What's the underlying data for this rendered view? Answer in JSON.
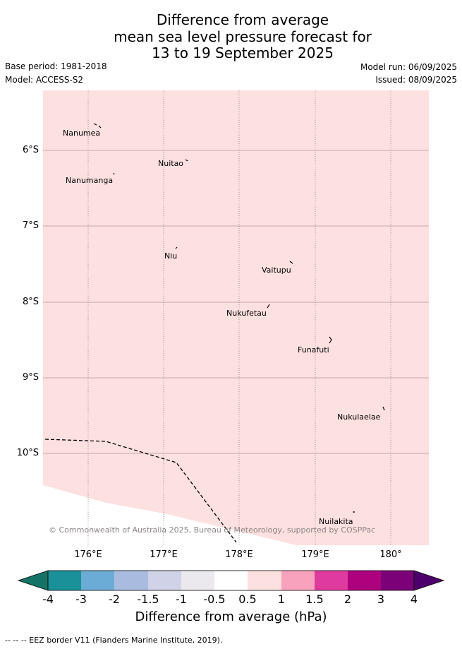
{
  "title": {
    "line1": "Difference from average",
    "line2": "mean sea level pressure forecast for",
    "line3": "13 to 19 September 2025"
  },
  "base_period": "Base period: 1981-2018",
  "model": "Model: ACCESS-S2",
  "model_run": "Model run: 06/09/2025",
  "issued": "Issued: 08/09/2025",
  "latitude_labels": [
    "6°S",
    "7°S",
    "8°S",
    "9°S",
    "10°S"
  ],
  "longitude_labels": [
    "176°E",
    "177°E",
    "178°E",
    "179°E",
    "180°"
  ],
  "places": [
    "Nanumea",
    "Nuitao",
    "Nanumanga",
    "Niu",
    "Vaitupu",
    "Nukufetau",
    "Funafuti",
    "Nukulaelae",
    "Nuilakita"
  ],
  "copyright": "© Commonwealth of Australia 2025, Bureau of Meteorology, supported by COSPPac",
  "colorbar": {
    "tick_labels": [
      "-4",
      "-3",
      "-2",
      "-1.5",
      "-1",
      "-0.5",
      "0.5",
      "1",
      "1.5",
      "2",
      "3",
      "4"
    ],
    "colors": [
      "#1a9098",
      "#6aacd5",
      "#a9bcdf",
      "#d0d2e8",
      "#ebe9ee",
      "#ffffff",
      "#fde0e0",
      "#f9a2bd",
      "#df3a9e",
      "#ad017e",
      "#7b0179",
      "#4d006c",
      "#127366"
    ],
    "label": "Difference from average (hPa)"
  },
  "map_fill_color": "#fde0e0",
  "footnote": "-- -- -- EEZ border V11 (Flanders Marine Institute, 2019)."
}
